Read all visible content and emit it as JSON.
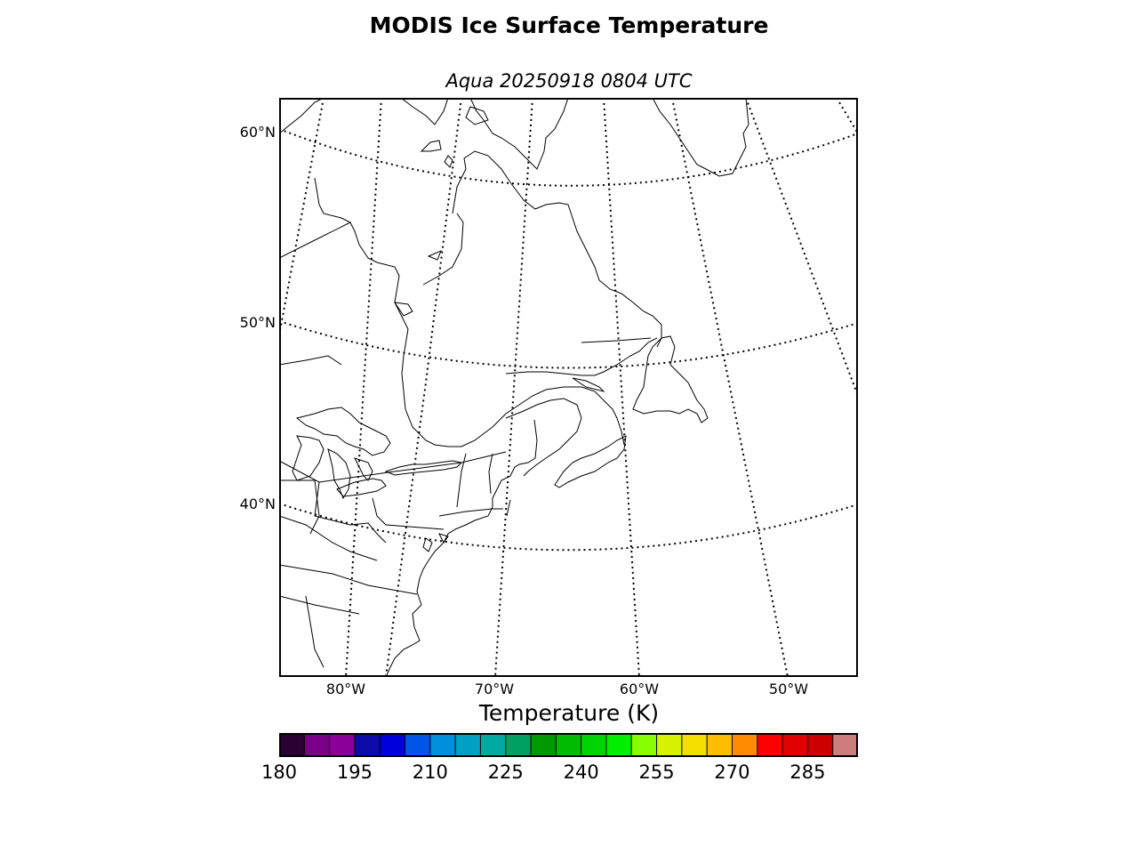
{
  "title": "MODIS Ice Surface Temperature",
  "subtitle": "Aqua 20250918 0804 UTC",
  "map": {
    "lat_labels": [
      "60°N",
      "50°N",
      "40°N"
    ],
    "lon_labels": [
      "80°W",
      "70°W",
      "60°W",
      "50°W"
    ]
  },
  "colorbar": {
    "label": "Temperature (K)",
    "min": 180,
    "max": 295,
    "step": 5,
    "tick_labels": [
      "180",
      "195",
      "210",
      "225",
      "240",
      "255",
      "270",
      "285"
    ],
    "colors": [
      "#2b0033",
      "#7a0088",
      "#8a0099",
      "#0c0ca8",
      "#0000dd",
      "#0055e6",
      "#008fdd",
      "#00a0c4",
      "#00aaa0",
      "#00a060",
      "#009900",
      "#00bb00",
      "#00d400",
      "#00f000",
      "#88ff00",
      "#d6f200",
      "#f2df00",
      "#ffbd00",
      "#ff8c00",
      "#ff0000",
      "#e00000",
      "#cc0000",
      "#cc7d7d"
    ]
  }
}
